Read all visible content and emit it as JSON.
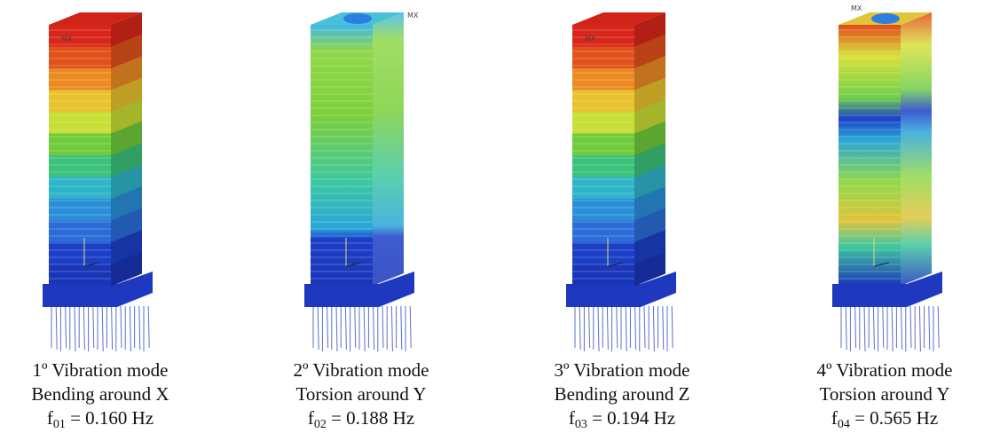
{
  "panels": [
    {
      "max_label": "MX",
      "mode": "1º Vibration mode",
      "description": "Bending around X",
      "freq": {
        "symbol": "f",
        "subscript": "01",
        "text": " = 0.160 Hz"
      }
    },
    {
      "max_label": "MX",
      "mode": "2º Vibration mode",
      "description": "Torsion around Y",
      "freq": {
        "symbol": "f",
        "subscript": "02",
        "text": " = 0.188 Hz"
      }
    },
    {
      "max_label": "MX",
      "mode": "3º Vibration mode",
      "description": "Bending around Z",
      "freq": {
        "symbol": "f",
        "subscript": "03",
        "text": " = 0.194 Hz"
      }
    },
    {
      "max_label": "MX",
      "mode": "4º Vibration mode",
      "description": "Torsion around Y",
      "freq": {
        "symbol": "f",
        "subscript": "04",
        "text": " = 0.565 Hz"
      }
    }
  ]
}
